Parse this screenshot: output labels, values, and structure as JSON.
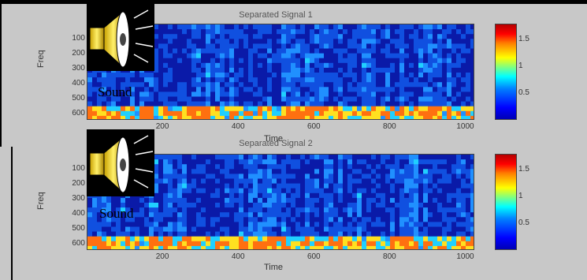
{
  "colors": {
    "figure_bg": "#c8c8c8",
    "spectrogram_base": "#1020a0",
    "colormap": [
      "#0000b4",
      "#0000ff",
      "#0080ff",
      "#00ffff",
      "#ffff00",
      "#ff8000",
      "#ff0000"
    ]
  },
  "sound_buttons": [
    {
      "label": "Sound",
      "icon": "speaker-icon"
    },
    {
      "label": "Sound",
      "icon": "speaker-icon"
    }
  ],
  "chart_data": [
    {
      "type": "heatmap",
      "title": "Separated Signal 1",
      "xlabel": "Time",
      "ylabel": "Freq",
      "xlim": [
        0,
        1024
      ],
      "ylim": [
        0,
        640
      ],
      "y_inverted": true,
      "xticks": [
        200,
        400,
        600,
        800,
        1000
      ],
      "yticks": [
        100,
        200,
        300,
        400,
        500,
        600
      ],
      "colorbar": {
        "range": [
          0,
          1.8
        ],
        "ticks": [
          0.5,
          1,
          1.5
        ],
        "tick_labels": [
          "0.5",
          "1",
          "1.5"
        ]
      }
    },
    {
      "type": "heatmap",
      "title": "Separated Signal 2",
      "xlabel": "Time",
      "ylabel": "Freq",
      "xlim": [
        0,
        1024
      ],
      "ylim": [
        0,
        640
      ],
      "y_inverted": true,
      "xticks": [
        200,
        400,
        600,
        800,
        1000
      ],
      "yticks": [
        100,
        200,
        300,
        400,
        500,
        600
      ],
      "colorbar": {
        "range": [
          0,
          1.8
        ],
        "ticks": [
          0.5,
          1,
          1.5
        ],
        "tick_labels": [
          "0.5",
          "1",
          "1.5"
        ]
      }
    }
  ]
}
